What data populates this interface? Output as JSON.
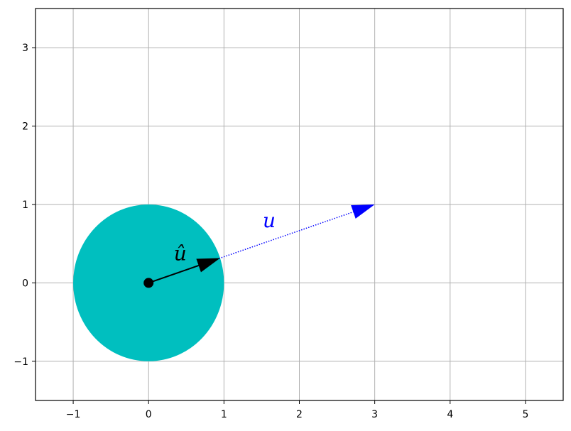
{
  "chart_data": {
    "type": "scatter",
    "title": "",
    "xlabel": "",
    "ylabel": "",
    "xlim": [
      -1.5,
      5.5
    ],
    "ylim": [
      -1.5,
      3.5
    ],
    "grid": true,
    "xticks": [
      -1,
      0,
      1,
      2,
      3,
      4,
      5
    ],
    "yticks": [
      -1,
      0,
      1,
      2,
      3
    ],
    "xtick_labels": [
      "−1",
      "0",
      "1",
      "2",
      "3",
      "4",
      "5"
    ],
    "ytick_labels": [
      "−1",
      "0",
      "1",
      "2",
      "3"
    ],
    "unit_circle": {
      "center": [
        0,
        0
      ],
      "radius": 1,
      "color": "#00bfbf"
    },
    "origin_point": {
      "x": 0,
      "y": 0,
      "color": "#000000"
    },
    "vectors": [
      {
        "label": "u",
        "from": [
          0,
          0
        ],
        "to": [
          3,
          1
        ],
        "color": "#0000ff",
        "style": "dotted",
        "label_pos": [
          1.6,
          0.8
        ]
      },
      {
        "label": "û",
        "from": [
          0,
          0
        ],
        "to": [
          0.9487,
          0.3162
        ],
        "color": "#000000",
        "style": "solid",
        "label_pos": [
          0.42,
          0.38
        ]
      }
    ]
  }
}
